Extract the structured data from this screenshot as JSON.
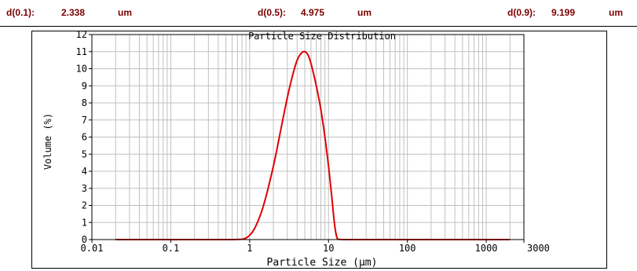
{
  "stats": {
    "d10_label": "d(0.1):",
    "d10_value": "2.338",
    "d10_unit": "um",
    "d50_label": "d(0.5):",
    "d50_value": "4.975",
    "d50_unit": "um",
    "d90_label": "d(0.9):",
    "d90_value": "9.199",
    "d90_unit": "um"
  },
  "colors": {
    "stat_text": "#7a0000",
    "curve": "#e00000",
    "grid": "#c0c0c0",
    "axis": "#000000"
  },
  "chart_data": {
    "type": "line",
    "title": "Particle Size Distribution",
    "xlabel": "Particle Size (μm)",
    "ylabel": "Volume (%)",
    "x_scale": "log",
    "xlim": [
      0.01,
      3000
    ],
    "ylim": [
      0,
      12
    ],
    "x_tick_values": [
      0.01,
      0.1,
      1,
      10,
      100,
      1000,
      3000
    ],
    "x_tick_labels": [
      "0.01",
      "0.1",
      "1",
      "10",
      "100",
      "1000",
      "3000"
    ],
    "y_tick_values": [
      0,
      1,
      2,
      3,
      4,
      5,
      6,
      7,
      8,
      9,
      10,
      11,
      12
    ],
    "y_tick_labels": [
      "0",
      "1",
      "2",
      "3",
      "4",
      "5",
      "6",
      "7",
      "8",
      "9",
      "10",
      "11",
      "12"
    ],
    "grid": true,
    "series": [
      {
        "x": [
          0.02,
          0.1,
          0.5,
          0.8,
          1.0,
          1.2,
          1.5,
          2.0,
          2.5,
          3.0,
          3.5,
          4.0,
          4.5,
          5.0,
          5.5,
          6.0,
          7.0,
          8.0,
          9.0,
          10.0,
          11.0,
          12.0,
          13.0,
          15.0,
          20.0,
          100.0,
          1000.0,
          2000.0
        ],
        "y": [
          0,
          0,
          0,
          0.02,
          0.25,
          0.8,
          2.0,
          4.3,
          6.5,
          8.3,
          9.6,
          10.5,
          10.9,
          11.0,
          10.8,
          10.3,
          9.0,
          7.6,
          6.0,
          4.3,
          2.5,
          0.8,
          0.05,
          0,
          0,
          0,
          0,
          0
        ]
      }
    ]
  }
}
